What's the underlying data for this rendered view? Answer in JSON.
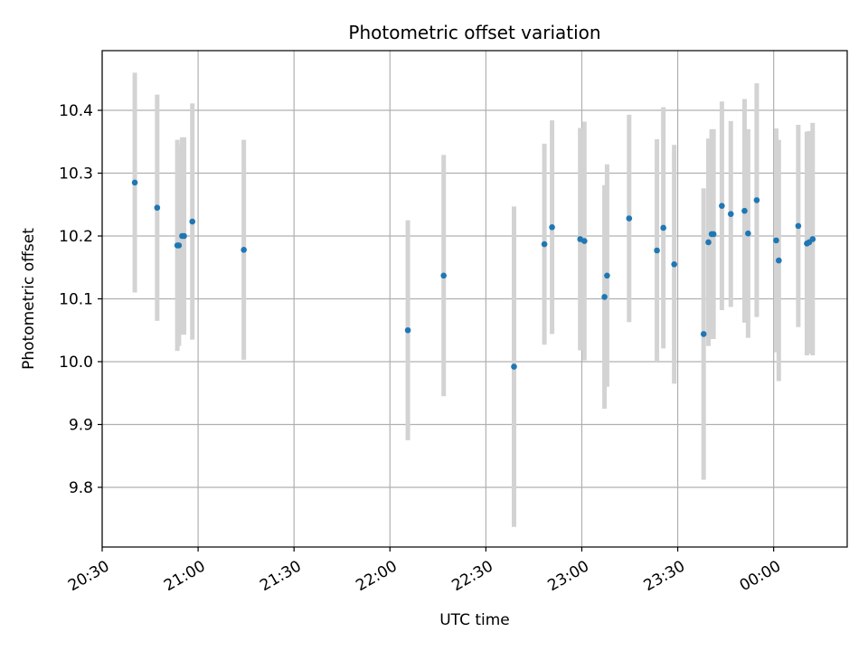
{
  "chart_data": {
    "type": "scatter",
    "title": "Photometric offset variation",
    "xlabel": "UTC time",
    "ylabel": "Photometric offset",
    "x_unit": "minutes",
    "x_ticks": [
      {
        "value": 0,
        "label": "20:30"
      },
      {
        "value": 30,
        "label": "21:00"
      },
      {
        "value": 60,
        "label": "21:30"
      },
      {
        "value": 90,
        "label": "22:00"
      },
      {
        "value": 120,
        "label": "22:30"
      },
      {
        "value": 150,
        "label": "23:00"
      },
      {
        "value": 180,
        "label": "23:30"
      },
      {
        "value": 210,
        "label": "00:00"
      }
    ],
    "y_ticks": [
      9.8,
      9.9,
      10.0,
      10.1,
      10.2,
      10.3,
      10.4
    ],
    "xlim": [
      0,
      233
    ],
    "ylim": [
      9.705,
      10.495
    ],
    "grid": true,
    "colors": {
      "marker": "#1f77b4",
      "errorbar": "#d3d3d3",
      "grid": "#b0b0b0"
    },
    "points": [
      {
        "x": 10.2,
        "y": 10.285,
        "err": 0.175
      },
      {
        "x": 17.2,
        "y": 10.245,
        "err": 0.18
      },
      {
        "x": 23.5,
        "y": 10.185,
        "err": 0.168
      },
      {
        "x": 24.0,
        "y": 10.185,
        "err": 0.16
      },
      {
        "x": 25.0,
        "y": 10.2,
        "err": 0.157
      },
      {
        "x": 25.6,
        "y": 10.2,
        "err": 0.157
      },
      {
        "x": 28.2,
        "y": 10.223,
        "err": 0.188
      },
      {
        "x": 44.3,
        "y": 10.178,
        "err": 0.175
      },
      {
        "x": 95.6,
        "y": 10.05,
        "err": 0.175
      },
      {
        "x": 106.8,
        "y": 10.137,
        "err": 0.192
      },
      {
        "x": 128.8,
        "y": 9.992,
        "err": 0.255
      },
      {
        "x": 138.3,
        "y": 10.187,
        "err": 0.16
      },
      {
        "x": 140.7,
        "y": 10.214,
        "err": 0.17
      },
      {
        "x": 149.5,
        "y": 10.195,
        "err": 0.177
      },
      {
        "x": 150.8,
        "y": 10.192,
        "err": 0.19
      },
      {
        "x": 157.1,
        "y": 10.103,
        "err": 0.178
      },
      {
        "x": 157.9,
        "y": 10.137,
        "err": 0.177
      },
      {
        "x": 164.8,
        "y": 10.228,
        "err": 0.165
      },
      {
        "x": 173.5,
        "y": 10.177,
        "err": 0.177
      },
      {
        "x": 175.5,
        "y": 10.213,
        "err": 0.192
      },
      {
        "x": 178.9,
        "y": 10.155,
        "err": 0.19
      },
      {
        "x": 188.1,
        "y": 10.044,
        "err": 0.232
      },
      {
        "x": 189.6,
        "y": 10.19,
        "err": 0.165
      },
      {
        "x": 190.6,
        "y": 10.203,
        "err": 0.167
      },
      {
        "x": 191.2,
        "y": 10.203,
        "err": 0.167
      },
      {
        "x": 193.8,
        "y": 10.248,
        "err": 0.166
      },
      {
        "x": 196.6,
        "y": 10.235,
        "err": 0.148
      },
      {
        "x": 200.9,
        "y": 10.24,
        "err": 0.178
      },
      {
        "x": 202.0,
        "y": 10.204,
        "err": 0.166
      },
      {
        "x": 204.7,
        "y": 10.257,
        "err": 0.186
      },
      {
        "x": 210.8,
        "y": 10.193,
        "err": 0.178
      },
      {
        "x": 211.6,
        "y": 10.161,
        "err": 0.192
      },
      {
        "x": 217.7,
        "y": 10.216,
        "err": 0.161
      },
      {
        "x": 220.4,
        "y": 10.188,
        "err": 0.178
      },
      {
        "x": 221.1,
        "y": 10.19,
        "err": 0.177
      },
      {
        "x": 222.2,
        "y": 10.195,
        "err": 0.185
      }
    ]
  }
}
